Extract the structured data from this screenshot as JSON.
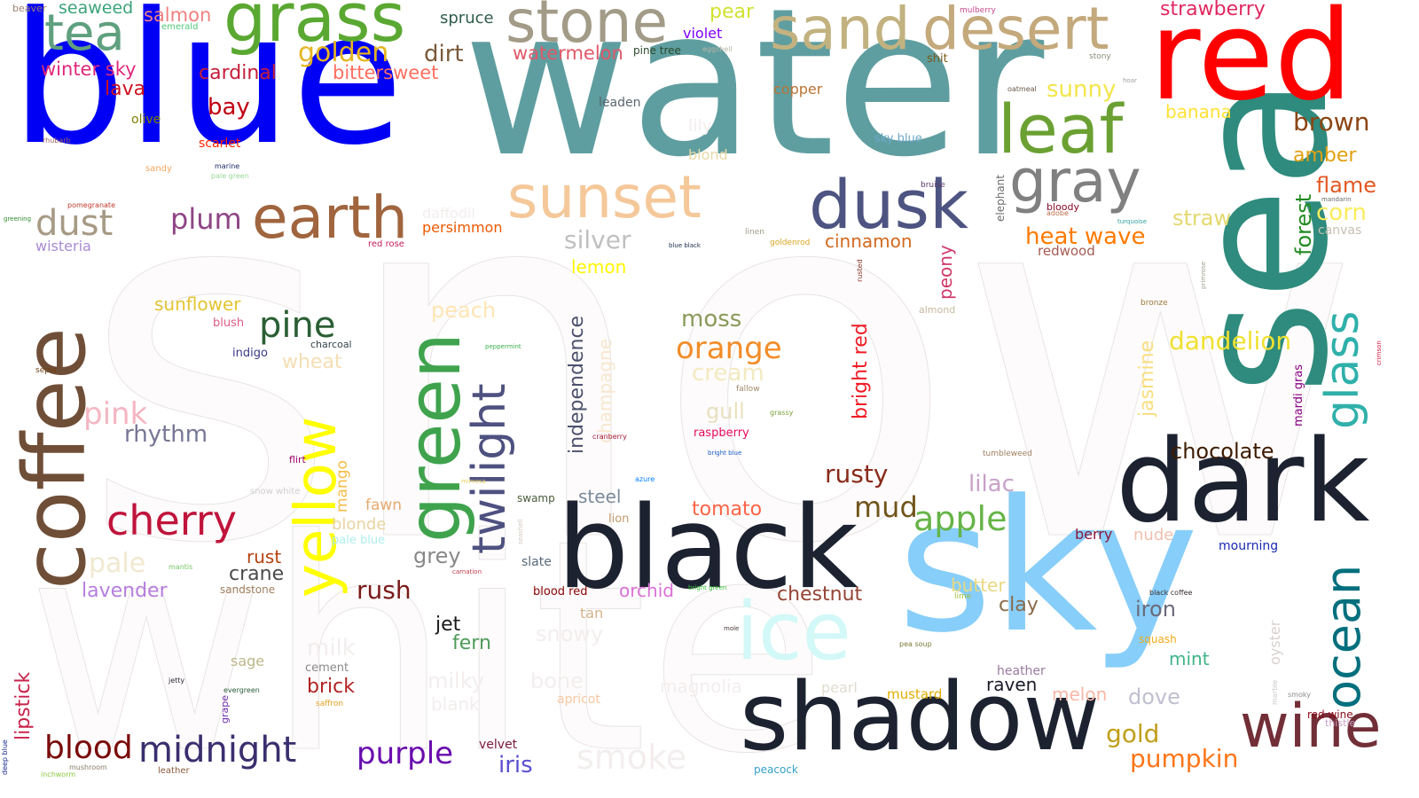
{
  "words": [
    {
      "text": "snow",
      "color": "#fdfafa"
    },
    {
      "text": "white",
      "color": "#fdfafa"
    },
    {
      "text": "blue",
      "color": "#0000f5"
    },
    {
      "text": "water",
      "color": "#5f9ea0"
    },
    {
      "text": "sea",
      "color": "#2e8b7d"
    },
    {
      "text": "sky",
      "color": "#87cefa"
    },
    {
      "text": "red",
      "color": "#ff0000"
    },
    {
      "text": "black",
      "color": "#1c2230"
    },
    {
      "text": "dark",
      "color": "#1c2230"
    },
    {
      "text": "shadow",
      "color": "#1c2230"
    },
    {
      "text": "coffee",
      "color": "#6f4e37"
    },
    {
      "text": "grass",
      "color": "#5aa832"
    },
    {
      "text": "stone",
      "color": "#a29b87"
    },
    {
      "text": "sand",
      "color": "#c2b280"
    },
    {
      "text": "desert",
      "color": "#c4a97c"
    },
    {
      "text": "leaf",
      "color": "#6ba032"
    },
    {
      "text": "gray",
      "color": "#808080"
    },
    {
      "text": "dusk",
      "color": "#4e5481"
    },
    {
      "text": "earth",
      "color": "#a0653e"
    },
    {
      "text": "sunset",
      "color": "#f5c89a"
    },
    {
      "text": "ice",
      "color": "#d2f8f7"
    },
    {
      "text": "green",
      "color": "#3fa34d"
    },
    {
      "text": "yellow",
      "color": "#ffff00"
    },
    {
      "text": "twilight",
      "color": "#4e5180"
    },
    {
      "text": "ocean",
      "color": "#016f7d"
    },
    {
      "text": "glass",
      "color": "#2fb0aa"
    },
    {
      "text": "wine",
      "color": "#722f37"
    },
    {
      "text": "tea",
      "color": "#5fa07f"
    },
    {
      "text": "cherry",
      "color": "#c0143c"
    },
    {
      "text": "midnight",
      "color": "#3b2e6e"
    },
    {
      "text": "purple",
      "color": "#6a0dad"
    },
    {
      "text": "blood",
      "color": "#7a0a0a"
    },
    {
      "text": "pine",
      "color": "#2a5e34"
    },
    {
      "text": "dust",
      "color": "#a69a85"
    },
    {
      "text": "orange",
      "color": "#f28c28"
    },
    {
      "text": "apple",
      "color": "#66b447"
    },
    {
      "text": "chocolate",
      "color": "#3d1c02"
    },
    {
      "text": "smoke",
      "color": "#ebe9e9"
    },
    {
      "text": "gold",
      "color": "#c09e1a"
    },
    {
      "text": "pumpkin",
      "color": "#ff7518"
    },
    {
      "text": "strawberry",
      "color": "#e02860"
    },
    {
      "text": "seaweed",
      "color": "#3aa37a"
    },
    {
      "text": "beaver",
      "color": "#9f8170"
    },
    {
      "text": "salmon",
      "color": "#f08080"
    },
    {
      "text": "emerald",
      "color": "#50c878"
    },
    {
      "text": "spruce",
      "color": "#2f5d4b"
    },
    {
      "text": "pear",
      "color": "#d1e231"
    },
    {
      "text": "mulberry",
      "color": "#c54b8c"
    },
    {
      "text": "winter sky",
      "color": "#e0287b"
    },
    {
      "text": "golden",
      "color": "#e6b422"
    },
    {
      "text": "dirt",
      "color": "#7a5a3a"
    },
    {
      "text": "watermelon",
      "color": "#e05868"
    },
    {
      "text": "violet",
      "color": "#7f00ff"
    },
    {
      "text": "pine tree",
      "color": "#2a4a2a"
    },
    {
      "text": "eggshell",
      "color": "#b8b4a4"
    },
    {
      "text": "shit",
      "color": "#7a5a1a"
    },
    {
      "text": "stony",
      "color": "#8a8a7a"
    },
    {
      "text": "cardinal",
      "color": "#c41e3a"
    },
    {
      "text": "bittersweet",
      "color": "#fe6f5e"
    },
    {
      "text": "lava",
      "color": "#cf1020"
    },
    {
      "text": "olive",
      "color": "#808000"
    },
    {
      "text": "bay",
      "color": "#c00010"
    },
    {
      "text": "scarlet",
      "color": "#ff2400"
    },
    {
      "text": "rhubarb",
      "color": "#a0625e"
    },
    {
      "text": "marine",
      "color": "#1a2a6a"
    },
    {
      "text": "pale green",
      "color": "#98d898"
    },
    {
      "text": "sandy",
      "color": "#f4a460"
    },
    {
      "text": "pomegranate",
      "color": "#c0392b"
    },
    {
      "text": "greening",
      "color": "#2e8b2e"
    },
    {
      "text": "wisteria",
      "color": "#a98bd3"
    },
    {
      "text": "plum",
      "color": "#8e4585"
    },
    {
      "text": "daffodil",
      "color": "#ffff31"
    },
    {
      "text": "persimmon",
      "color": "#ec5800"
    },
    {
      "text": "red rose",
      "color": "#c21e56"
    },
    {
      "text": "copper",
      "color": "#b87333"
    },
    {
      "text": "leaden",
      "color": "#5a6670"
    },
    {
      "text": "lily",
      "color": "#e8e4ea"
    },
    {
      "text": "blond",
      "color": "#e8d8a8"
    },
    {
      "text": "sunny",
      "color": "#f2e64a"
    },
    {
      "text": "banana",
      "color": "#ffe135"
    },
    {
      "text": "brown",
      "color": "#8b4513"
    },
    {
      "text": "amber",
      "color": "#e0a010"
    },
    {
      "text": "flame",
      "color": "#e25822"
    },
    {
      "text": "corn",
      "color": "#fbec5d"
    },
    {
      "text": "canvas",
      "color": "#c8c0b0"
    },
    {
      "text": "oatmeal",
      "color": "#6a5a4a"
    },
    {
      "text": "hoar",
      "color": "#a0a0a0"
    },
    {
      "text": "sky blue",
      "color": "#6aa8c8"
    },
    {
      "text": "bruise",
      "color": "#5a3a6a"
    },
    {
      "text": "bloody",
      "color": "#8a0a2a"
    },
    {
      "text": "adobe",
      "color": "#bd6c48"
    },
    {
      "text": "turquoise",
      "color": "#30a0a0"
    },
    {
      "text": "mandarin",
      "color": "#6a6a6a"
    },
    {
      "text": "elephant",
      "color": "#6a6a6a"
    },
    {
      "text": "heat wave",
      "color": "#ff7a00"
    },
    {
      "text": "redwood",
      "color": "#a45a52"
    },
    {
      "text": "straw",
      "color": "#e4d96f"
    },
    {
      "text": "forest",
      "color": "#228b22"
    },
    {
      "text": "silver",
      "color": "#c0c0c0"
    },
    {
      "text": "linen",
      "color": "#a09a8a"
    },
    {
      "text": "blue black",
      "color": "#1a2a4a"
    },
    {
      "text": "goldenrod",
      "color": "#daa520"
    },
    {
      "text": "cinnamon",
      "color": "#d2691e"
    },
    {
      "text": "rusted",
      "color": "#8a3a2a"
    },
    {
      "text": "peony",
      "color": "#d03a6a"
    },
    {
      "text": "almond",
      "color": "#c8b8a0"
    },
    {
      "text": "primrose",
      "color": "#9aa08a"
    },
    {
      "text": "lemon",
      "color": "#fff700"
    },
    {
      "text": "sunflower",
      "color": "#e4c432"
    },
    {
      "text": "blush",
      "color": "#de5d83"
    },
    {
      "text": "charcoal",
      "color": "#36454f"
    },
    {
      "text": "indigo",
      "color": "#3a3a8a"
    },
    {
      "text": "wheat",
      "color": "#f5deb3"
    },
    {
      "text": "sepia",
      "color": "#704214"
    },
    {
      "text": "peach",
      "color": "#ffe5b4"
    },
    {
      "text": "peppermint",
      "color": "#3ab04a"
    },
    {
      "text": "independence",
      "color": "#4c516d"
    },
    {
      "text": "champagne",
      "color": "#f7e7ce"
    },
    {
      "text": "moss",
      "color": "#8a9a5b"
    },
    {
      "text": "cream",
      "color": "#f2eac0"
    },
    {
      "text": "fallow",
      "color": "#a08a6a"
    },
    {
      "text": "gull",
      "color": "#e8e0c0"
    },
    {
      "text": "grassy",
      "color": "#7aa03a"
    },
    {
      "text": "raspberry",
      "color": "#e30b5c"
    },
    {
      "text": "cranberry",
      "color": "#9f1a3a"
    },
    {
      "text": "bright blue",
      "color": "#1a5ac8"
    },
    {
      "text": "bright red",
      "color": "#ee1c25"
    },
    {
      "text": "bronze",
      "color": "#9a7a3a"
    },
    {
      "text": "jasmine",
      "color": "#f8de7e"
    },
    {
      "text": "dandelion",
      "color": "#f0e130"
    },
    {
      "text": "mardi gras",
      "color": "#880085"
    },
    {
      "text": "crimson",
      "color": "#dc143c"
    },
    {
      "text": "pink",
      "color": "#f4b6c2"
    },
    {
      "text": "rhythm",
      "color": "#777696"
    },
    {
      "text": "flirt",
      "color": "#a2006d"
    },
    {
      "text": "mango",
      "color": "#f4bb44"
    },
    {
      "text": "snow white",
      "color": "#d0d0d0"
    },
    {
      "text": "fawn",
      "color": "#e5aa70"
    },
    {
      "text": "blonde",
      "color": "#e8d4a0"
    },
    {
      "text": "pale blue",
      "color": "#afeeee"
    },
    {
      "text": "mimosa",
      "color": "#e8d060"
    },
    {
      "text": "azure",
      "color": "#007fff"
    },
    {
      "text": "swamp",
      "color": "#4a5a3a"
    },
    {
      "text": "steel",
      "color": "#7a8a9a"
    },
    {
      "text": "tomato",
      "color": "#ff6347"
    },
    {
      "text": "lion",
      "color": "#c19a6b"
    },
    {
      "text": "tumbleweed",
      "color": "#a08060"
    },
    {
      "text": "rusty",
      "color": "#8a2a1a"
    },
    {
      "text": "mud",
      "color": "#70541b"
    },
    {
      "text": "lilac",
      "color": "#c8a2c8"
    },
    {
      "text": "mourning",
      "color": "#1a2ab0"
    },
    {
      "text": "berry",
      "color": "#8a1a3a"
    },
    {
      "text": "nude",
      "color": "#f0c0b0"
    },
    {
      "text": "pale",
      "color": "#f0e8d0"
    },
    {
      "text": "mantis",
      "color": "#74c365"
    },
    {
      "text": "lavender",
      "color": "#b57edc"
    },
    {
      "text": "rust",
      "color": "#b7410e"
    },
    {
      "text": "crane",
      "color": "#4a4a4a"
    },
    {
      "text": "sandstone",
      "color": "#a08060"
    },
    {
      "text": "grey",
      "color": "#888888"
    },
    {
      "text": "seashell",
      "color": "#d0c8c0"
    },
    {
      "text": "slate",
      "color": "#5a6a7a"
    },
    {
      "text": "carnation",
      "color": "#c03a4a"
    },
    {
      "text": "blood red",
      "color": "#8a0303"
    },
    {
      "text": "orchid",
      "color": "#da70d6"
    },
    {
      "text": "bright green",
      "color": "#3ac03a"
    },
    {
      "text": "chestnut",
      "color": "#954535"
    },
    {
      "text": "rush",
      "color": "#7a1a1a"
    },
    {
      "text": "tan",
      "color": "#d2b48c"
    },
    {
      "text": "jet",
      "color": "#1a1a1a"
    },
    {
      "text": "fern",
      "color": "#4f9a5a"
    },
    {
      "text": "snowy",
      "color": "#e8e4e4"
    },
    {
      "text": "mole",
      "color": "#4a3a3a"
    },
    {
      "text": "butter",
      "color": "#e8d880"
    },
    {
      "text": "lime",
      "color": "#a0c040"
    },
    {
      "text": "clay",
      "color": "#8a6a4a"
    },
    {
      "text": "iron",
      "color": "#6a6a7a"
    },
    {
      "text": "black coffee",
      "color": "#3b2f2f"
    },
    {
      "text": "squash",
      "color": "#f2ab15"
    },
    {
      "text": "mint",
      "color": "#3eb489"
    },
    {
      "text": "oyster",
      "color": "#d8d0d0"
    },
    {
      "text": "heather",
      "color": "#9a7aa0"
    },
    {
      "text": "raven",
      "color": "#1a1a2a"
    },
    {
      "text": "pea soup",
      "color": "#7a7a3a"
    },
    {
      "text": "pearl",
      "color": "#e0dcd0"
    },
    {
      "text": "magnolia",
      "color": "#e8e0e8"
    },
    {
      "text": "apricot",
      "color": "#f8c8a0"
    },
    {
      "text": "bone",
      "color": "#e3dac9"
    },
    {
      "text": "milky",
      "color": "#e8e8e8"
    },
    {
      "text": "blank",
      "color": "#e8e8e8"
    },
    {
      "text": "milk",
      "color": "#f0eeee"
    },
    {
      "text": "cement",
      "color": "#8a8a8a"
    },
    {
      "text": "brick",
      "color": "#b22222"
    },
    {
      "text": "sage",
      "color": "#bcb88a"
    },
    {
      "text": "jetty",
      "color": "#2a2a3a"
    },
    {
      "text": "evergreen",
      "color": "#2a5a3a"
    },
    {
      "text": "saffron",
      "color": "#e4a020"
    },
    {
      "text": "grape",
      "color": "#6f2da8"
    },
    {
      "text": "lipstick",
      "color": "#c8224a"
    },
    {
      "text": "deep blue",
      "color": "#1a2a8a"
    },
    {
      "text": "mushroom",
      "color": "#8a7a6a"
    },
    {
      "text": "inchworm",
      "color": "#8ac83a"
    },
    {
      "text": "leather",
      "color": "#8a5a3a"
    },
    {
      "text": "velvet",
      "color": "#7a1a3a"
    },
    {
      "text": "iris",
      "color": "#5a4fcf"
    },
    {
      "text": "mustard",
      "color": "#e1ad01"
    },
    {
      "text": "melon",
      "color": "#f8b8a8"
    },
    {
      "text": "dove",
      "color": "#c0c0d0"
    },
    {
      "text": "smoky",
      "color": "#8a8a8a"
    },
    {
      "text": "marble",
      "color": "#c8c8c8"
    },
    {
      "text": "red wine",
      "color": "#8a0a1a"
    },
    {
      "text": "thistle",
      "color": "#c8a0c8"
    },
    {
      "text": "peacock",
      "color": "#33a1c9"
    }
  ]
}
